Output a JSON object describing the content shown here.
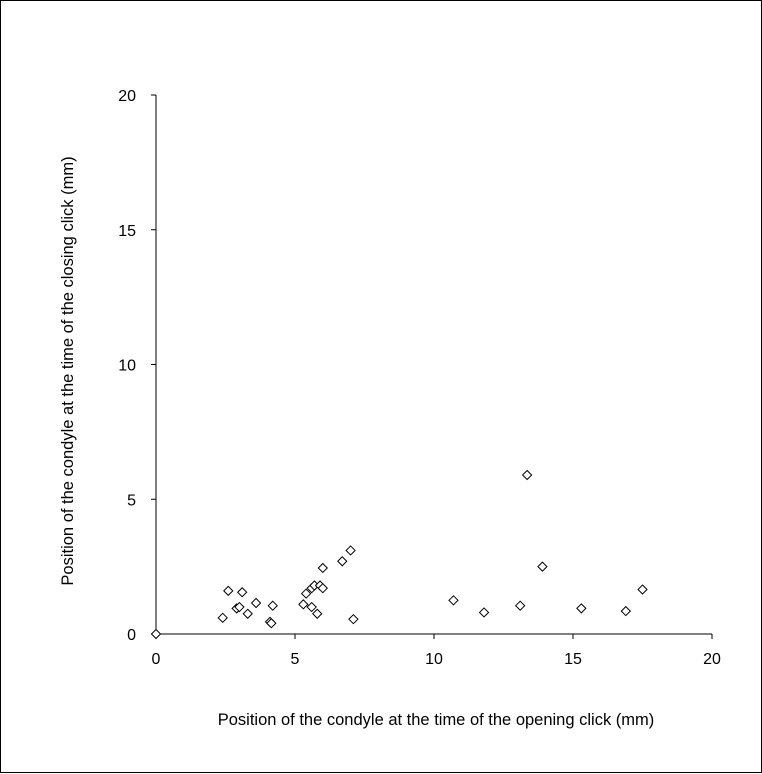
{
  "chart_data": {
    "type": "scatter",
    "title": "",
    "xlabel": "Position of the condyle at the time of the opening click (mm)",
    "ylabel": "Position of the condyle at the time of the closing click (mm)",
    "xlim": [
      0,
      20
    ],
    "ylim": [
      0,
      20
    ],
    "x_ticks": [
      "0",
      "5",
      "10",
      "15",
      "20"
    ],
    "y_ticks": [
      "0",
      "5",
      "10",
      "15",
      "20"
    ],
    "grid": false,
    "legend": "none",
    "marker": "diamond-open",
    "series": [
      {
        "points": [
          {
            "x": 0,
            "y": 0
          },
          {
            "x": 2.4,
            "y": 0.6
          },
          {
            "x": 2.6,
            "y": 1.6
          },
          {
            "x": 2.9,
            "y": 0.95
          },
          {
            "x": 3.0,
            "y": 1.0
          },
          {
            "x": 3.1,
            "y": 1.55
          },
          {
            "x": 3.3,
            "y": 0.75
          },
          {
            "x": 3.6,
            "y": 1.15
          },
          {
            "x": 4.1,
            "y": 0.45
          },
          {
            "x": 4.15,
            "y": 0.4
          },
          {
            "x": 4.2,
            "y": 1.05
          },
          {
            "x": 5.3,
            "y": 1.1
          },
          {
            "x": 5.4,
            "y": 1.5
          },
          {
            "x": 5.6,
            "y": 1.0
          },
          {
            "x": 5.6,
            "y": 1.7
          },
          {
            "x": 5.7,
            "y": 1.8
          },
          {
            "x": 5.8,
            "y": 0.75
          },
          {
            "x": 5.9,
            "y": 1.8
          },
          {
            "x": 6.0,
            "y": 1.7
          },
          {
            "x": 6.0,
            "y": 2.45
          },
          {
            "x": 6.7,
            "y": 2.7
          },
          {
            "x": 7.0,
            "y": 3.1
          },
          {
            "x": 7.1,
            "y": 0.55
          },
          {
            "x": 10.7,
            "y": 1.25
          },
          {
            "x": 11.8,
            "y": 0.8
          },
          {
            "x": 13.1,
            "y": 1.05
          },
          {
            "x": 13.35,
            "y": 5.9
          },
          {
            "x": 13.9,
            "y": 2.5
          },
          {
            "x": 15.3,
            "y": 0.95
          },
          {
            "x": 16.9,
            "y": 0.85
          },
          {
            "x": 17.5,
            "y": 1.65
          }
        ]
      }
    ]
  }
}
